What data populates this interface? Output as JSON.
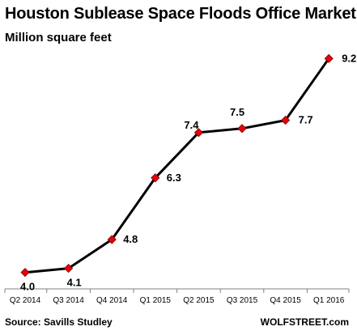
{
  "chart_data": {
    "type": "line",
    "title": "Houston Sublease Space Floods Office Market",
    "subtitle": "Million square feet",
    "categories": [
      "Q2 2014",
      "Q3 2014",
      "Q4 2014",
      "Q1 2015",
      "Q2 2015",
      "Q3 2015",
      "Q4 2015",
      "Q1 2016"
    ],
    "series": [
      {
        "values": [
          4.0,
          4.1,
          4.8,
          6.3,
          7.4,
          7.5,
          7.7,
          9.2
        ],
        "labels": [
          "4.0",
          "4.1",
          "4.8",
          "6.3",
          "7.4",
          "7.5",
          "7.7",
          "9.2"
        ],
        "line_color": "#000000",
        "marker": "diamond",
        "marker_color": "#e8000b"
      }
    ],
    "ylim": [
      3.6,
      9.6
    ],
    "xlabel": "",
    "ylabel": "",
    "grid": false,
    "legend": "none"
  },
  "source": "Source: Savills Studley",
  "credit": "WOLFSTREET.com"
}
